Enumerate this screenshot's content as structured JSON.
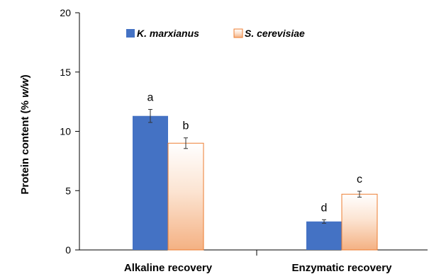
{
  "chart_data": {
    "type": "bar",
    "ylabel_prefix": "Protein content (% ",
    "ylabel_italic": "w/w",
    "ylabel_suffix": ")",
    "ylim": [
      0,
      20
    ],
    "yticks": [
      "0",
      "5",
      "10",
      "15",
      "20"
    ],
    "categories": [
      "Alkaline recovery",
      "Enzymatic recovery"
    ],
    "series": [
      {
        "name": "K. marxianus",
        "values": [
          11.3,
          2.4
        ],
        "errors": [
          0.55,
          0.15
        ],
        "labels": [
          "a",
          "d"
        ],
        "color": "#4472C4",
        "fill": "solid"
      },
      {
        "name": "S. cerevisiae",
        "values": [
          9.0,
          4.7
        ],
        "errors": [
          0.45,
          0.25
        ],
        "labels": [
          "b",
          "c"
        ],
        "color": "#ED7D31",
        "fill": "gradient"
      }
    ],
    "legend_position": "top-left",
    "grid": false
  }
}
